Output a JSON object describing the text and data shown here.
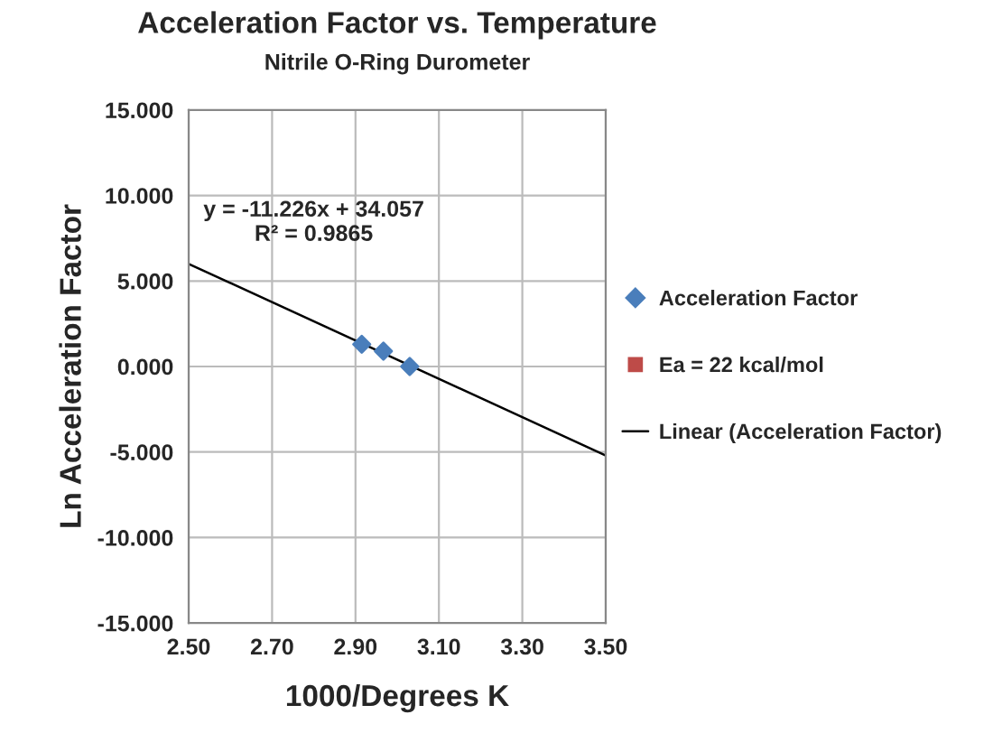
{
  "chart_data": {
    "type": "scatter",
    "title": "Acceleration Factor vs. Temperature",
    "subtitle": "Nitrile O-Ring Durometer",
    "xlabel": "1000/Degrees K",
    "ylabel": "Ln Acceleration Factor",
    "series": [
      {
        "name": "Acceleration Factor",
        "color": "#4a7ebb",
        "marker": "diamond",
        "x": [
          2.915,
          2.967,
          3.03
        ],
        "values": [
          1.3,
          0.9,
          0.0
        ]
      },
      {
        "name": "Ea = 22 kcal/mol",
        "color": "#be4b48",
        "marker": "square"
      },
      {
        "name": "Linear (Acceleration Factor)",
        "type": "line",
        "color": "#000000",
        "marker": "none",
        "x": [
          2.5,
          3.5
        ],
        "values": [
          6.0,
          -5.2
        ]
      }
    ],
    "annotations": [
      "y = -11.226x + 34.057\nR² = 0.9865"
    ],
    "xlim": [
      2.5,
      3.5
    ],
    "xticks": [
      {
        "value": 2.5,
        "label": "2.50"
      },
      {
        "value": 2.7,
        "label": "2.70"
      },
      {
        "value": 2.9,
        "label": "2.90"
      },
      {
        "value": 3.1,
        "label": "3.10"
      },
      {
        "value": 3.3,
        "label": "3.30"
      },
      {
        "value": 3.5,
        "label": "3.50"
      }
    ],
    "ylim": [
      -15,
      15
    ],
    "yticks": [
      {
        "value": -15,
        "label": "-15.000"
      },
      {
        "value": -10,
        "label": "-10.000"
      },
      {
        "value": -5,
        "label": "-5.000"
      },
      {
        "value": 0,
        "label": "0.000"
      },
      {
        "value": 5,
        "label": "5.000"
      },
      {
        "value": 10,
        "label": "10.000"
      },
      {
        "value": 15,
        "label": "15.000"
      }
    ],
    "grid": true,
    "legend": "right"
  }
}
